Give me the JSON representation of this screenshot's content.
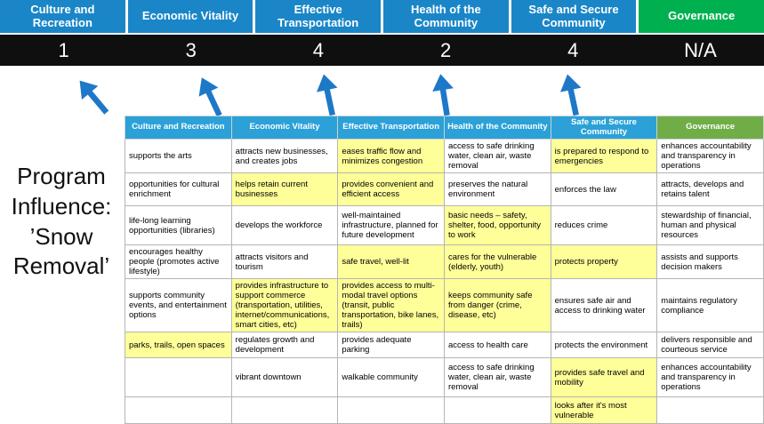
{
  "colors": {
    "outcome_blue": "#1a86c8",
    "outcome_green": "#00b050",
    "table_header_blue": "#2ba1d8",
    "table_header_green": "#70ad47",
    "highlight_yellow": "#ffff99",
    "arrow_blue": "#1e78c8",
    "score_band_bg": "#0f0f0f"
  },
  "program_label": {
    "lines": {
      "0": "Program",
      "1": "Influence:",
      "2": "’Snow",
      "3": "Removal’"
    }
  },
  "scoreboard": {
    "columns": [
      {
        "label": "Culture and Recreation",
        "score": "1",
        "color": "#1a86c8"
      },
      {
        "label": "Economic Vitality",
        "score": "3",
        "color": "#1a86c8"
      },
      {
        "label": "Effective Transportation",
        "score": "4",
        "color": "#1a86c8"
      },
      {
        "label": "Health of the Community",
        "score": "2",
        "color": "#1a86c8"
      },
      {
        "label": "Safe and Secure Community",
        "score": "4",
        "color": "#1a86c8"
      },
      {
        "label": "Governance",
        "score": "N/A",
        "color": "#00b050"
      }
    ]
  },
  "matrix": {
    "headers": [
      {
        "label": "Culture and Recreation",
        "color": "#2ba1d8"
      },
      {
        "label": "Economic Vitality",
        "color": "#2ba1d8"
      },
      {
        "label": "Effective Transportation",
        "color": "#2ba1d8"
      },
      {
        "label": "Health of the Community",
        "color": "#2ba1d8"
      },
      {
        "label": "Safe and Secure Community",
        "color": "#2ba1d8"
      },
      {
        "label": "Governance",
        "color": "#70ad47"
      }
    ],
    "rows": [
      [
        {
          "t": "supports the arts"
        },
        {
          "t": "attracts new businesses, and creates jobs"
        },
        {
          "t": "eases traffic flow and minimizes congestion",
          "h": true
        },
        {
          "t": "access to safe drinking water, clean air, waste removal"
        },
        {
          "t": "is prepared to respond to emergencies",
          "h": true
        },
        {
          "t": "enhances accountability and transparency in operations"
        }
      ],
      [
        {
          "t": "opportunities for cultural enrichment"
        },
        {
          "t": "helps retain current businesses",
          "h": true
        },
        {
          "t": "provides convenient and efficient access",
          "h": true
        },
        {
          "t": "preserves the natural environment"
        },
        {
          "t": "enforces the law"
        },
        {
          "t": "attracts, develops and retains talent"
        }
      ],
      [
        {
          "t": "life-long learning opportunities (libraries)"
        },
        {
          "t": "develops the workforce"
        },
        {
          "t": "well-maintained infrastructure, planned for future development"
        },
        {
          "t": "basic needs – safety, shelter, food, opportunity to work",
          "h": true
        },
        {
          "t": "reduces crime"
        },
        {
          "t": "stewardship of financial, human and physical resources"
        }
      ],
      [
        {
          "t": "encourages healthy people (promotes active lifestyle)"
        },
        {
          "t": "attracts visitors and tourism"
        },
        {
          "t": "safe travel, well-lit",
          "h": true
        },
        {
          "t": "cares for the vulnerable (elderly, youth)",
          "h": true
        },
        {
          "t": "protects property",
          "h": true
        },
        {
          "t": "assists and supports decision makers"
        }
      ],
      [
        {
          "t": "supports community events, and entertainment options"
        },
        {
          "t": "provides infrastructure to support commerce (transportation, utilities, internet/communications, smart cities, etc)",
          "h": true
        },
        {
          "t": "provides access to multi-modal travel options (transit, public transportation, bike lanes, trails)",
          "h": true
        },
        {
          "t": "keeps community safe from danger (crime, disease, etc)",
          "h": true
        },
        {
          "t": "ensures safe air and access to drinking water"
        },
        {
          "t": "maintains regulatory compliance"
        }
      ],
      [
        {
          "t": "parks, trails, open spaces",
          "h": true
        },
        {
          "t": "regulates growth and development"
        },
        {
          "t": "provides adequate parking"
        },
        {
          "t": "access to health care"
        },
        {
          "t": "protects the environment"
        },
        {
          "t": "delivers responsible and courteous service"
        }
      ],
      [
        {
          "t": ""
        },
        {
          "t": "vibrant downtown"
        },
        {
          "t": "walkable community"
        },
        {
          "t": "access to safe drinking water, clean air, waste removal"
        },
        {
          "t": "provides safe travel and mobility",
          "h": true
        },
        {
          "t": "enhances accountability and transparency in operations"
        }
      ],
      [
        {
          "t": ""
        },
        {
          "t": ""
        },
        {
          "t": ""
        },
        {
          "t": ""
        },
        {
          "t": "looks after it's most vulnerable",
          "h": true
        },
        {
          "t": ""
        }
      ]
    ]
  }
}
